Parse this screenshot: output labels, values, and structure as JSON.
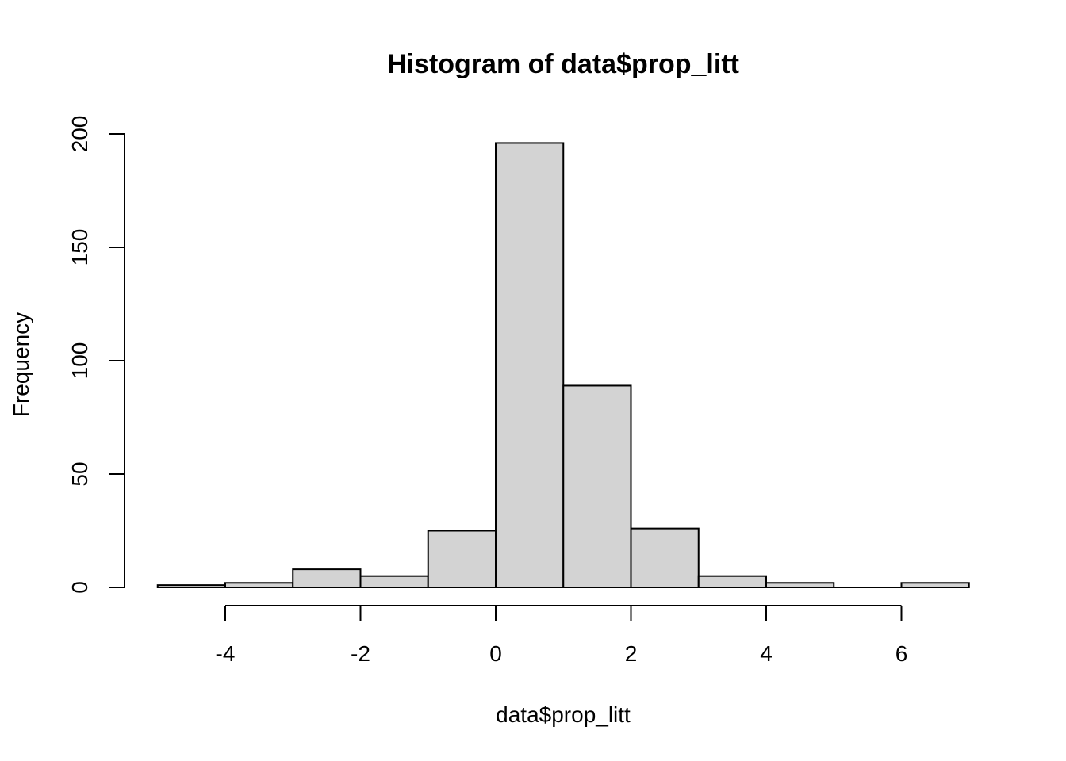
{
  "chart_data": {
    "type": "bar",
    "title": "Histogram of data$prop_litt",
    "xlabel": "data$prop_litt",
    "ylabel": "Frequency",
    "bins": [
      {
        "from": -5,
        "to": -4,
        "count": 1
      },
      {
        "from": -4,
        "to": -3,
        "count": 2
      },
      {
        "from": -3,
        "to": -2,
        "count": 8
      },
      {
        "from": -2,
        "to": -1,
        "count": 5
      },
      {
        "from": -1,
        "to": 0,
        "count": 25
      },
      {
        "from": 0,
        "to": 1,
        "count": 196
      },
      {
        "from": 1,
        "to": 2,
        "count": 89
      },
      {
        "from": 2,
        "to": 3,
        "count": 26
      },
      {
        "from": 3,
        "to": 4,
        "count": 5
      },
      {
        "from": 4,
        "to": 5,
        "count": 2
      },
      {
        "from": 5,
        "to": 6,
        "count": 0
      },
      {
        "from": 6,
        "to": 7,
        "count": 2
      }
    ],
    "x_ticks": [
      -4,
      -2,
      0,
      2,
      4,
      6
    ],
    "y_ticks": [
      0,
      50,
      100,
      150,
      200
    ],
    "xlim": [
      -5,
      7
    ],
    "ylim": [
      0,
      200
    ],
    "grid": false,
    "colors": {
      "bar_fill": "#d3d3d3",
      "bar_stroke": "#000000"
    }
  }
}
